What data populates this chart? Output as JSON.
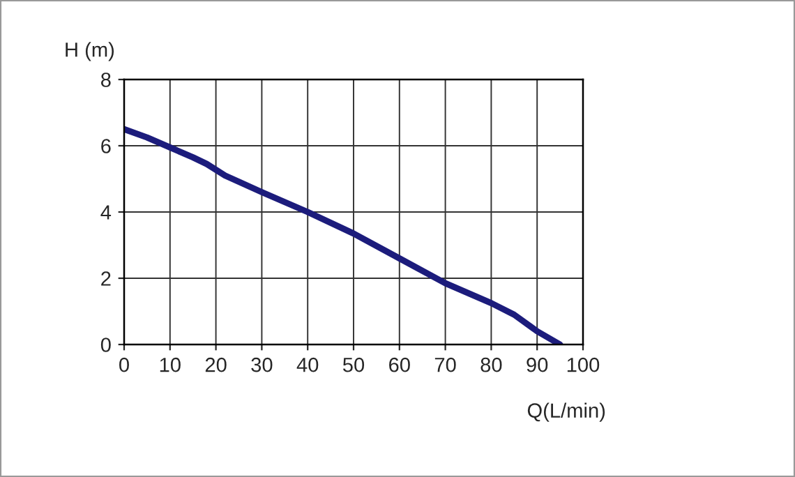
{
  "chart_data": {
    "type": "line",
    "xlabel": "Q(L/min)",
    "ylabel": "H (m)",
    "x": [
      0,
      5,
      10,
      15,
      18,
      22,
      30,
      40,
      50,
      60,
      70,
      80,
      85,
      90,
      95
    ],
    "series": [
      {
        "color": "#1c1c7c",
        "values": [
          6.5,
          6.25,
          5.95,
          5.65,
          5.45,
          5.1,
          4.6,
          4.0,
          3.35,
          2.6,
          1.85,
          1.25,
          0.9,
          0.4,
          0
        ]
      }
    ],
    "xlim": [
      0,
      100
    ],
    "xticks": [
      0,
      10,
      20,
      30,
      40,
      50,
      60,
      70,
      80,
      90,
      100
    ],
    "ylim": [
      0,
      8
    ],
    "yticks": [
      0,
      2,
      4,
      6,
      8
    ],
    "grid": true,
    "legend": false,
    "marker": "none",
    "line_style": "solid"
  }
}
